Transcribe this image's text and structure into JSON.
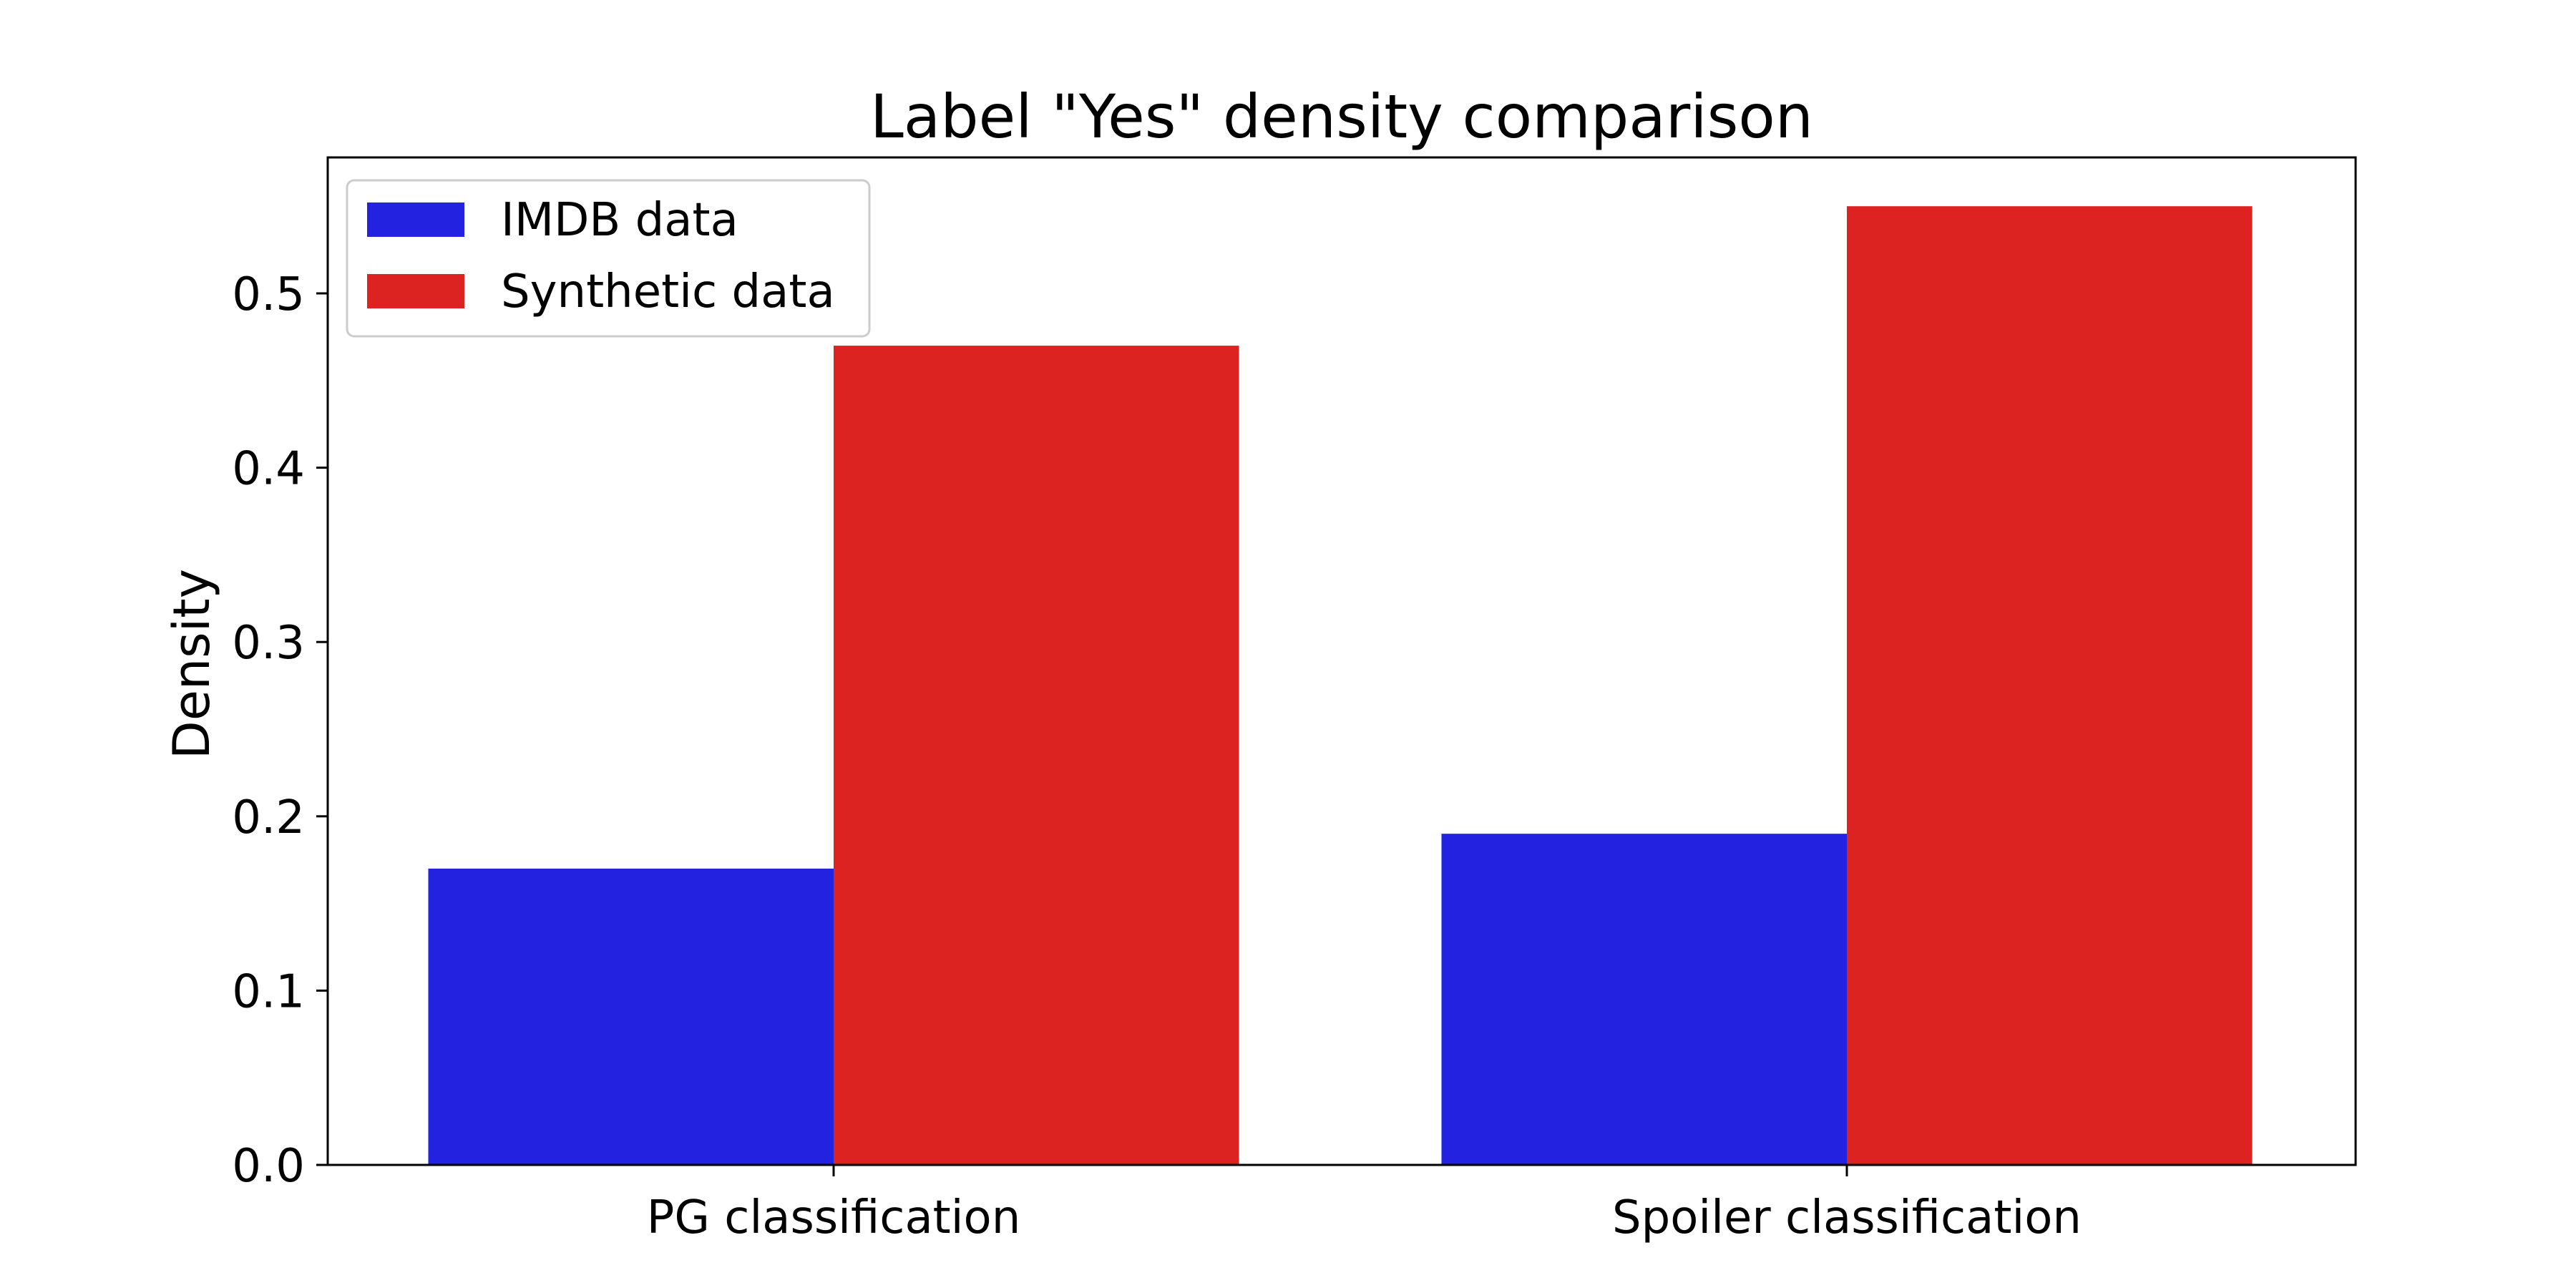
{
  "chart_data": {
    "type": "bar",
    "title": "Label \"Yes\" density comparison",
    "xlabel": "",
    "ylabel": "Density",
    "categories": [
      "PG classification",
      "Spoiler classification"
    ],
    "series": [
      {
        "name": "IMDB data",
        "color": "#2222e0",
        "values": [
          0.17,
          0.19
        ]
      },
      {
        "name": "Synthetic data",
        "color": "#dd2222",
        "values": [
          0.47,
          0.55
        ]
      }
    ],
    "ylim": [
      0,
      0.578
    ],
    "yticks": [
      0.0,
      0.1,
      0.2,
      0.3,
      0.4,
      0.5
    ],
    "ytick_labels": [
      "0.0",
      "0.1",
      "0.2",
      "0.3",
      "0.4",
      "0.5"
    ],
    "grid": false,
    "legend_position": "top-left"
  }
}
